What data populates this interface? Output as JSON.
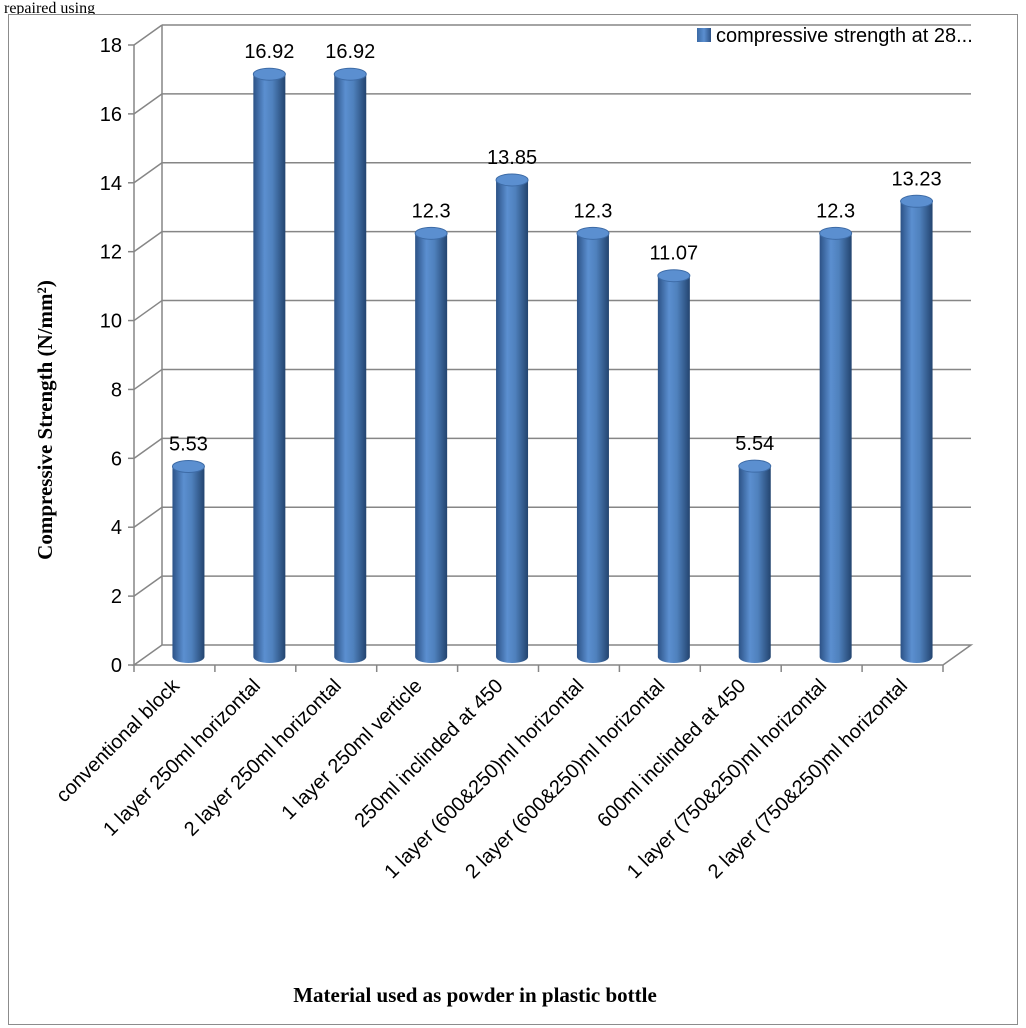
{
  "caption": "repaired using",
  "chart_data": {
    "type": "bar",
    "style": "3d-cylinder",
    "xlabel": "Material used as powder in plastic bottle",
    "ylabel": "Compressive Strength (N/mm²)",
    "ylim": [
      0,
      18
    ],
    "yticks": [
      0,
      2,
      4,
      6,
      8,
      10,
      12,
      14,
      16,
      18
    ],
    "grid": true,
    "legend_position": "top-right",
    "categories": [
      "conventional block",
      "1 layer  250ml horizontal",
      "2 layer 250ml horizontal",
      "1 layer 250ml verticle",
      "250ml inclinded at 450",
      "1 layer (600&250)ml  horizontal",
      "2 layer (600&250)ml horizontal",
      "600ml inclinded at 450",
      "1 layer (750&250)ml horizontal",
      "2 layer (750&250)ml horizontal"
    ],
    "series": [
      {
        "name": "compressive strength at 28...",
        "color": "#4f81bd",
        "values": [
          5.53,
          16.92,
          16.92,
          12.3,
          13.85,
          12.3,
          11.07,
          5.54,
          12.3,
          13.23
        ],
        "labels": [
          "5.53",
          "16.92",
          "16.92",
          "12.3",
          "13.85",
          "12.3",
          "11.07",
          "5.54",
          "12.3",
          "13.23"
        ]
      }
    ]
  }
}
